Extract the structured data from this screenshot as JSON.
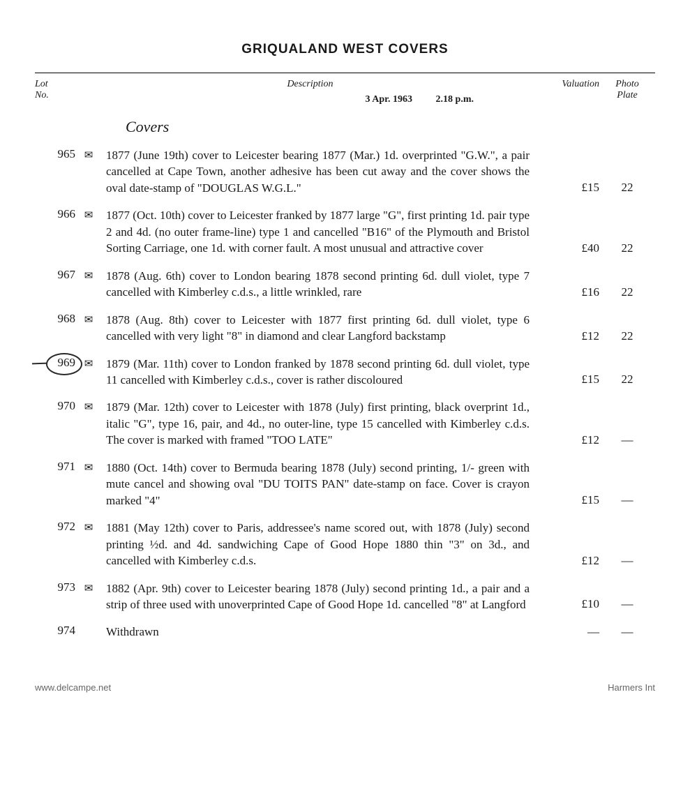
{
  "page_title": "GRIQUALAND WEST COVERS",
  "headers": {
    "lot": "Lot\nNo.",
    "description": "Description",
    "date": "3 Apr. 1963",
    "time": "2.18 p.m.",
    "valuation": "Valuation",
    "plate": "Photo\nPlate"
  },
  "section_title": "Covers",
  "lots": [
    {
      "num": "965",
      "icon": "✉",
      "circled": false,
      "desc": "1877 (June 19th) cover to Leicester bearing 1877 (Mar.) 1d. overprinted \"G.W.\", a pair cancelled at Cape Town, another adhesive has been cut away and the cover shows the oval date-stamp of \"DOUGLAS W.G.L.\"",
      "valuation": "£15",
      "plate": "22"
    },
    {
      "num": "966",
      "icon": "✉",
      "circled": false,
      "desc": "1877 (Oct. 10th) cover to Leicester franked by 1877 large \"G\", first printing 1d. pair type 2 and 4d. (no outer frame-line) type 1 and cancelled \"B16\" of the Plymouth and Bristol Sorting Carriage, one 1d. with corner fault. A most unusual and attractive cover",
      "valuation": "£40",
      "plate": "22"
    },
    {
      "num": "967",
      "icon": "✉",
      "circled": false,
      "desc": "1878 (Aug. 6th) cover to London bearing 1878 second printing 6d. dull violet, type 7 cancelled with Kimberley c.d.s., a little wrinkled, rare",
      "valuation": "£16",
      "plate": "22"
    },
    {
      "num": "968",
      "icon": "✉",
      "circled": false,
      "desc": "1878 (Aug. 8th) cover to Leicester with 1877 first printing 6d. dull violet, type 6 cancelled with very light \"8\" in diamond and clear Langford backstamp",
      "valuation": "£12",
      "plate": "22"
    },
    {
      "num": "969",
      "icon": "✉",
      "circled": true,
      "desc": "1879 (Mar. 11th) cover to London franked by 1878 second printing 6d. dull violet, type 11 cancelled with Kimberley c.d.s., cover is rather discoloured",
      "valuation": "£15",
      "plate": "22"
    },
    {
      "num": "970",
      "icon": "✉",
      "circled": false,
      "desc": "1879 (Mar. 12th) cover to Leicester with 1878 (July) first printing, black overprint 1d., italic \"G\", type 16, pair, and 4d., no outer-line, type 15 cancelled with Kimberley c.d.s. The cover is marked with framed \"TOO LATE\"",
      "valuation": "£12",
      "plate": "—"
    },
    {
      "num": "971",
      "icon": "✉",
      "circled": false,
      "desc": "1880 (Oct. 14th) cover to Bermuda bearing 1878 (July) second printing, 1/- green with mute cancel and showing oval \"DU TOITS PAN\" date-stamp on face. Cover is crayon marked \"4\"",
      "valuation": "£15",
      "plate": "—"
    },
    {
      "num": "972",
      "icon": "✉",
      "circled": false,
      "desc": "1881 (May 12th) cover to Paris, addressee's name scored out, with 1878 (July) second printing ½d. and 4d. sandwiching Cape of Good Hope 1880 thin \"3\" on 3d., and cancelled with Kimberley c.d.s.",
      "valuation": "£12",
      "plate": "—"
    },
    {
      "num": "973",
      "icon": "✉",
      "circled": false,
      "desc": "1882 (Apr. 9th) cover to Leicester bearing 1878 (July) second printing 1d., a pair and a strip of three used with unoverprinted Cape of Good Hope 1d. cancelled \"8\" at Langford",
      "valuation": "£10",
      "plate": "—"
    },
    {
      "num": "974",
      "icon": "",
      "circled": false,
      "desc": "Withdrawn",
      "valuation": "—",
      "plate": "—"
    }
  ],
  "footer": {
    "left": "www.delcampe.net",
    "right": "Harmers Int"
  },
  "colors": {
    "text": "#1a1a1a",
    "background": "#ffffff",
    "footer_text": "#666666",
    "circle": "#2a2a2a"
  },
  "typography": {
    "body_fontsize": 17,
    "title_fontsize": 19,
    "section_title_fontsize": 22,
    "header_fontsize": 14,
    "footer_fontsize": 13,
    "body_font": "Georgia, Times New Roman, serif",
    "title_font": "Arial, sans-serif"
  }
}
